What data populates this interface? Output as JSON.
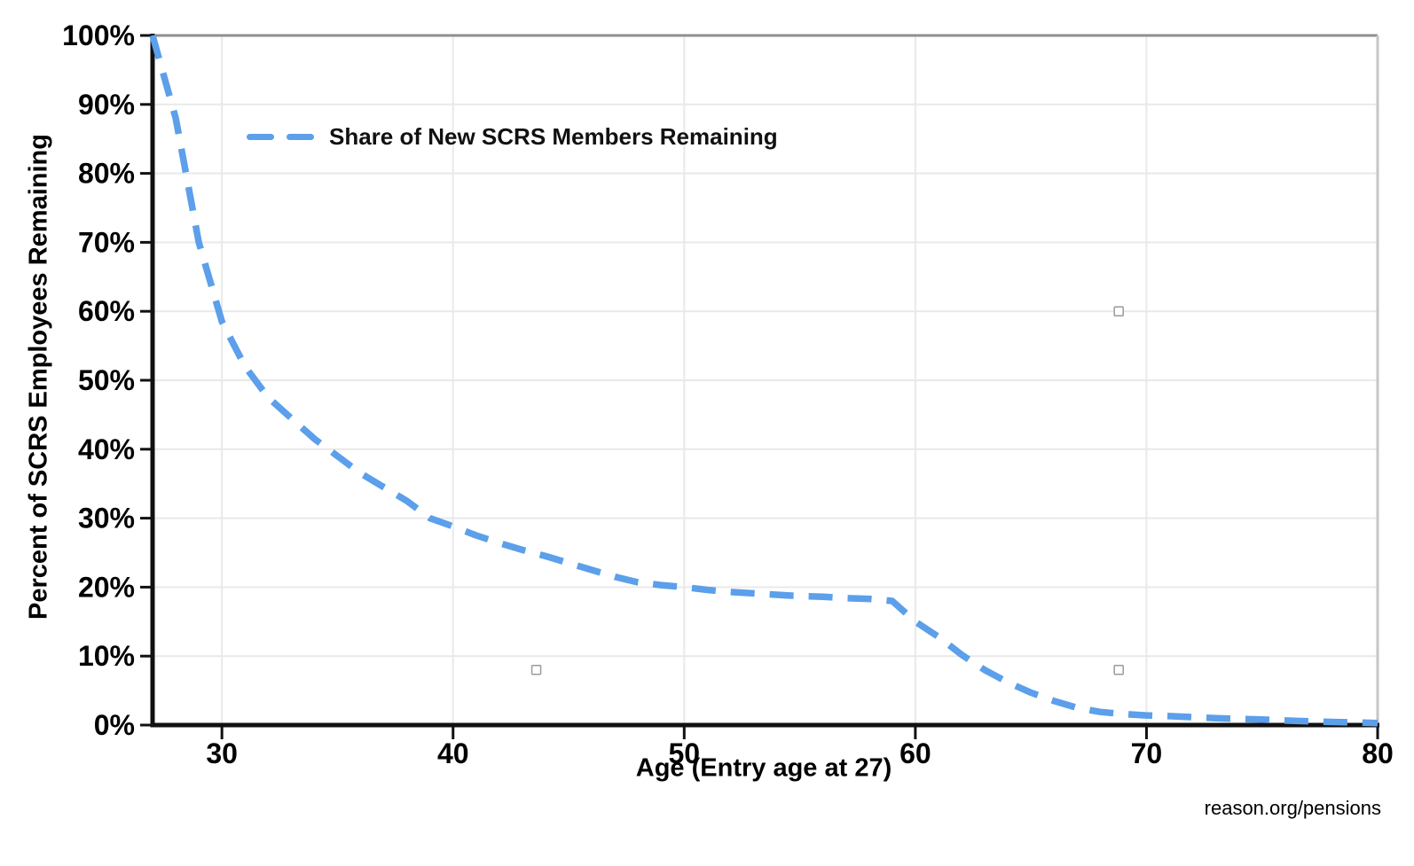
{
  "colors": {
    "series_blue": "#5C9FEA",
    "grid": "#e9e9e9",
    "axis_black": "#111111",
    "top_border": "#8f8f8f",
    "right_border": "#c6c6c6",
    "stray_marker_stroke": "#9a9a9a",
    "text": "#000000"
  },
  "watermark": {
    "text": "reason.org/pensions"
  },
  "chart_data": {
    "type": "line",
    "title": "",
    "xlabel": "Age (Entry age at 27)",
    "ylabel": "Percent of SCRS Employees Remaining",
    "xlim": [
      27,
      80
    ],
    "ylim": [
      0,
      100
    ],
    "x_ticks": [
      30,
      40,
      50,
      60,
      70,
      80
    ],
    "y_ticks": [
      0,
      10,
      20,
      30,
      40,
      50,
      60,
      70,
      80,
      90,
      100
    ],
    "y_tick_suffix": "%",
    "grid": true,
    "legend": {
      "position": "upper-left-inside",
      "entries": [
        {
          "label": "Share of New SCRS Members Remaining",
          "style": "dashed",
          "color": "#5C9FEA"
        }
      ]
    },
    "series": [
      {
        "name": "Share of New SCRS Members Remaining",
        "color": "#5C9FEA",
        "style": "dashed",
        "points": [
          [
            27,
            100
          ],
          [
            28,
            88
          ],
          [
            29,
            70
          ],
          [
            30,
            58.5
          ],
          [
            31,
            52
          ],
          [
            32,
            47.5
          ],
          [
            33,
            44.5
          ],
          [
            34,
            41.5
          ],
          [
            35,
            39
          ],
          [
            36,
            36.5
          ],
          [
            37,
            34.5
          ],
          [
            38,
            32.5
          ],
          [
            39,
            30
          ],
          [
            40,
            28.8
          ],
          [
            41,
            27.5
          ],
          [
            42,
            26.4
          ],
          [
            43,
            25.4
          ],
          [
            44,
            24.5
          ],
          [
            45,
            23.5
          ],
          [
            46,
            22.5
          ],
          [
            47,
            21.5
          ],
          [
            48,
            20.7
          ],
          [
            49,
            20.3
          ],
          [
            50,
            20
          ],
          [
            51,
            19.6
          ],
          [
            52,
            19.3
          ],
          [
            53,
            19.1
          ],
          [
            54,
            18.9
          ],
          [
            55,
            18.7
          ],
          [
            56,
            18.6
          ],
          [
            57,
            18.4
          ],
          [
            58,
            18.3
          ],
          [
            59,
            18
          ],
          [
            60,
            15
          ],
          [
            61,
            12.8
          ],
          [
            62,
            10.2
          ],
          [
            63,
            8
          ],
          [
            64,
            6.2
          ],
          [
            65,
            4.7
          ],
          [
            66,
            3.5
          ],
          [
            67,
            2.5
          ],
          [
            68,
            1.9
          ],
          [
            69,
            1.6
          ],
          [
            70,
            1.4
          ],
          [
            71,
            1.3
          ],
          [
            72,
            1.15
          ],
          [
            73,
            1.0
          ],
          [
            74,
            0.9
          ],
          [
            75,
            0.8
          ],
          [
            76,
            0.65
          ],
          [
            77,
            0.55
          ],
          [
            78,
            0.45
          ],
          [
            79,
            0.38
          ],
          [
            80,
            0.3
          ]
        ]
      }
    ],
    "stray_markers": [
      {
        "age": 43.6,
        "value": 8
      },
      {
        "age": 68.8,
        "value": 60
      },
      {
        "age": 68.8,
        "value": 8
      }
    ]
  }
}
